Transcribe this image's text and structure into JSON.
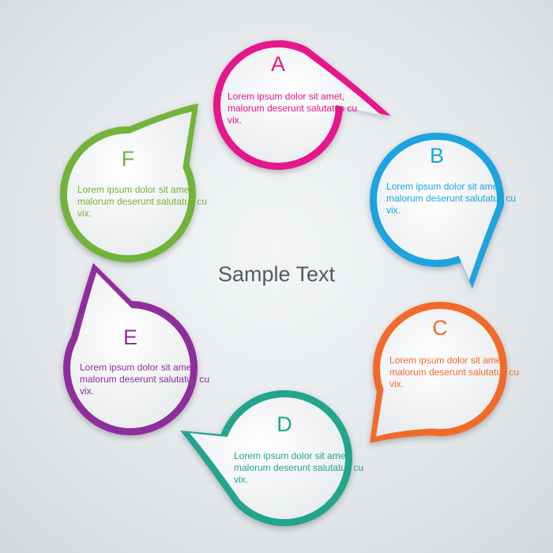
{
  "center_title": "Sample Text",
  "nodes": [
    {
      "letter": "A",
      "text": "Lorem ipsum dolor sit amet, malorum deserunt salutatus cu vix.",
      "color": "#e6168c"
    },
    {
      "letter": "B",
      "text": "Lorem ipsum dolor sit amet, malorum deserunt salutatus cu vix.",
      "color": "#1ea3e0"
    },
    {
      "letter": "C",
      "text": "Lorem ipsum dolor sit amet, malorum deserunt salutatus cu vix.",
      "color": "#f26b2b"
    },
    {
      "letter": "D",
      "text": "Lorem ipsum dolor sit amet, malorum deserunt salutatus cu vix.",
      "color": "#22a58c"
    },
    {
      "letter": "E",
      "text": "Lorem ipsum dolor sit amet, malorum deserunt salutatus cu vix.",
      "color": "#8e2f9c"
    },
    {
      "letter": "F",
      "text": "Lorem ipsum dolor sit amet, malorum deserunt salutatus cu vix.",
      "color": "#72b43a"
    }
  ]
}
